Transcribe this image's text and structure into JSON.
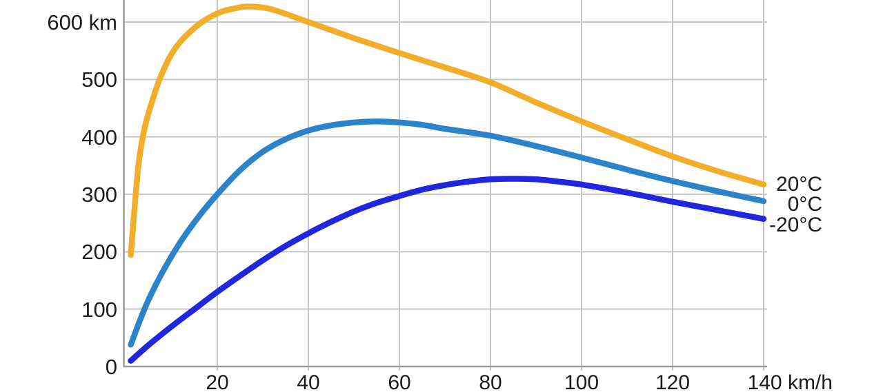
{
  "chart_data": {
    "type": "line",
    "title": "",
    "xlabel": "km/h",
    "ylabel": "km",
    "grid": true,
    "legend_position": "right-of-line-ends",
    "x_axis": {
      "min": 0,
      "max": 140.8,
      "ticks": [
        20,
        40,
        60,
        80,
        100,
        120,
        140
      ],
      "tick_labels": [
        "20",
        "40",
        "60",
        "80",
        "100",
        "120",
        "140 km/h"
      ]
    },
    "y_axis": {
      "min": 0,
      "max": 638,
      "ticks": [
        0,
        100,
        200,
        300,
        400,
        500,
        600
      ],
      "tick_labels": [
        "0",
        "100",
        "200",
        "300",
        "400",
        "500",
        "600 km"
      ]
    },
    "series": [
      {
        "name": "-20°C",
        "color": "#2026DE",
        "x": [
          1,
          5,
          10,
          15,
          20,
          25,
          30,
          35,
          40,
          45,
          50,
          55,
          60,
          65,
          70,
          75,
          80,
          85,
          90,
          95,
          100,
          110,
          120,
          130,
          140
        ],
        "y": [
          10,
          38,
          70,
          100,
          130,
          158,
          185,
          210,
          232,
          252,
          270,
          285,
          297,
          308,
          316,
          322,
          326,
          327,
          326,
          322,
          317,
          303,
          287,
          272,
          257
        ]
      },
      {
        "name": "0°C",
        "color": "#2B84C9",
        "x": [
          1,
          3,
          5,
          8,
          12,
          16,
          20,
          25,
          30,
          35,
          40,
          45,
          50,
          55,
          60,
          65,
          70,
          80,
          90,
          100,
          110,
          120,
          130,
          140
        ],
        "y": [
          38,
          80,
          118,
          165,
          218,
          262,
          300,
          342,
          374,
          396,
          411,
          420,
          425,
          427,
          425,
          421,
          414,
          402,
          384,
          364,
          343,
          323,
          305,
          288
        ]
      },
      {
        "name": "20°C",
        "color": "#F2AE2A",
        "x": [
          1,
          3,
          6,
          10,
          15,
          20,
          24,
          27,
          32,
          40,
          50,
          60,
          70,
          80,
          90,
          100,
          110,
          120,
          130,
          140
        ],
        "y": [
          194,
          370,
          470,
          545,
          590,
          615,
          624,
          627,
          622,
          600,
          572,
          546,
          521,
          495,
          460,
          427,
          396,
          366,
          340,
          317
        ]
      }
    ],
    "series_labels_right": [
      "20°C",
      "0°C",
      "-20°C"
    ]
  },
  "style": {
    "grid_color": "#c6c6c6",
    "axis_color": "#9b9b9b",
    "text_color": "#1c1c1c",
    "background": "#ffffff"
  }
}
